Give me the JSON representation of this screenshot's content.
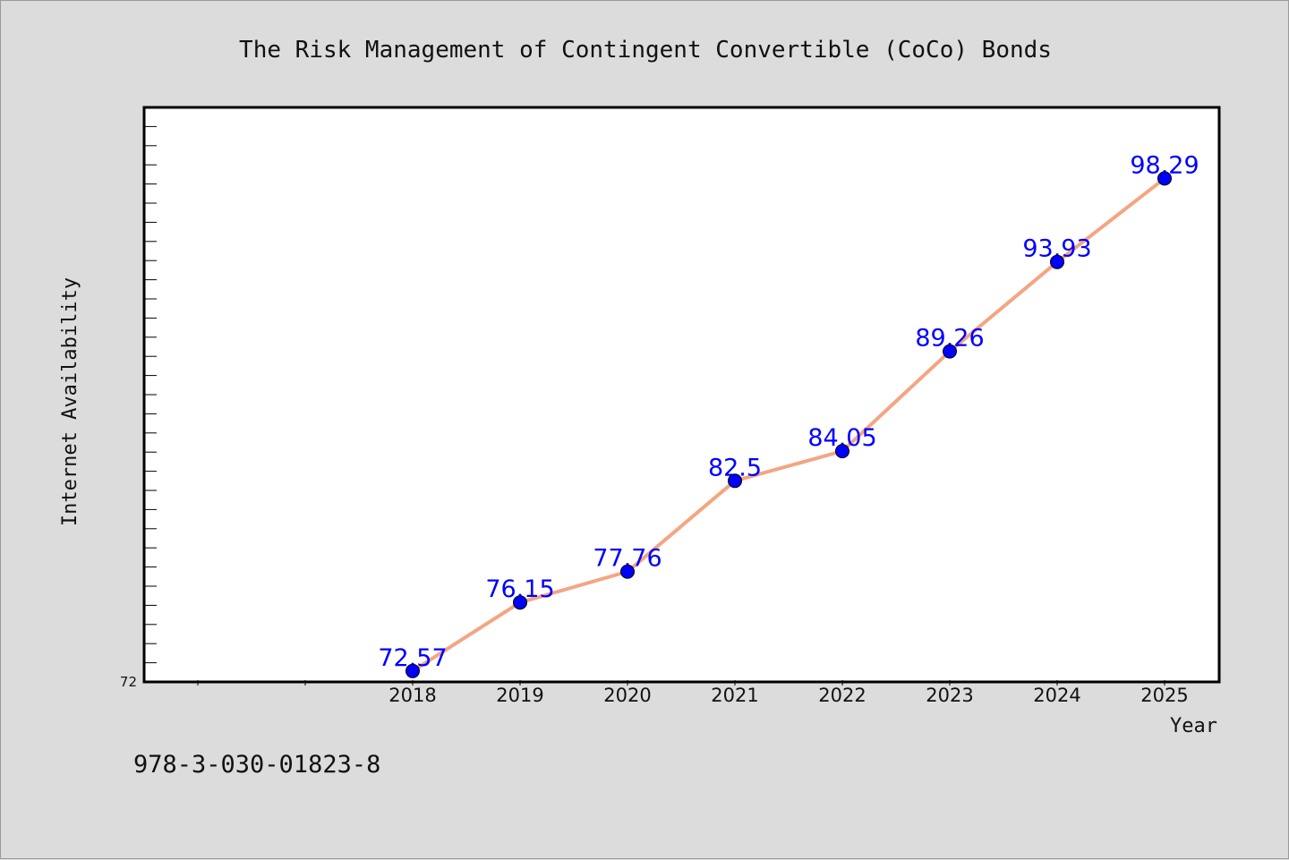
{
  "chart_data": {
    "type": "line",
    "title": "The Risk Management of Contingent Convertible (CoCo) Bonds",
    "xlabel": "Year",
    "ylabel": "Internet Availability",
    "categories": [
      "2018",
      "2019",
      "2020",
      "2021",
      "2022",
      "2023",
      "2024",
      "2025"
    ],
    "series": [
      {
        "values": [
          72.57,
          76.15,
          77.76,
          82.5,
          84.05,
          89.26,
          93.93,
          98.29
        ],
        "data_labels": [
          "72.57",
          "76.15",
          "77.76",
          "82.5",
          "84.05",
          "89.26",
          "93.93",
          "98.29"
        ],
        "line_color": "#f4a582",
        "marker_color": "#0000ff"
      }
    ],
    "ylim": [
      72,
      102
    ],
    "y_tick_labels": [
      "72"
    ],
    "grid": false,
    "legend": "none"
  },
  "footer": {
    "isbn": "978-3-030-01823-8"
  }
}
